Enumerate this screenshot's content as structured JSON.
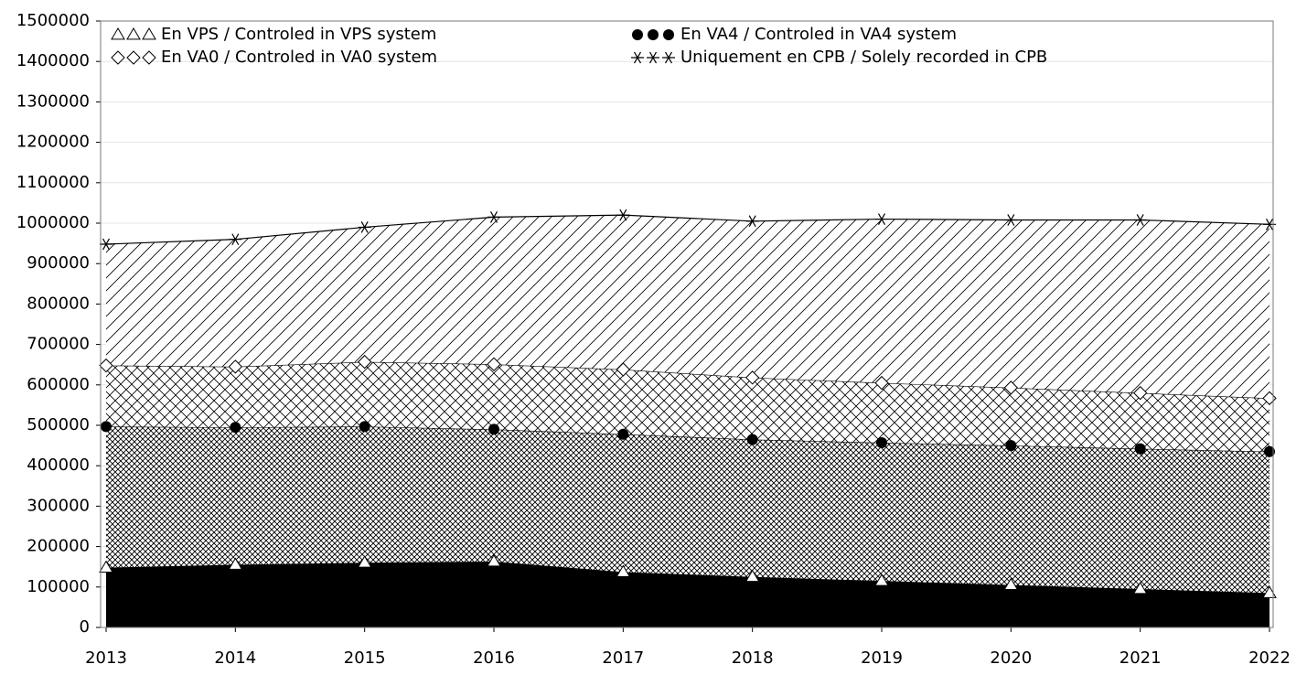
{
  "chart_data": {
    "type": "stacked_area",
    "x": [
      2013,
      2014,
      2015,
      2016,
      2017,
      2018,
      2019,
      2020,
      2021,
      2022
    ],
    "xlim": [
      2013,
      2022
    ],
    "xticks": [
      2013,
      2014,
      2015,
      2016,
      2017,
      2018,
      2019,
      2020,
      2021,
      2022
    ],
    "ylim": [
      0,
      1500000
    ],
    "yticks": [
      0,
      100000,
      200000,
      300000,
      400000,
      500000,
      600000,
      700000,
      800000,
      900000,
      1000000,
      1100000,
      1200000,
      1300000,
      1400000,
      1500000
    ],
    "grid": true,
    "legend": "top",
    "series": [
      {
        "name": "En VPS / Controled in VPS system",
        "color": "#000000",
        "marker": "triangle",
        "values": [
          148000,
          155000,
          160000,
          163000,
          137000,
          125000,
          115000,
          105000,
          95000,
          85000
        ]
      },
      {
        "name": "En VA4 / Controled in VA4 system",
        "color": "#000000",
        "marker": "circle",
        "values": [
          349000,
          340000,
          337000,
          327000,
          341000,
          340000,
          342000,
          345000,
          347000,
          350000
        ]
      },
      {
        "name": "En VA0 / Controled in VA0 system",
        "color": "#000000",
        "marker": "diamond",
        "values": [
          151000,
          150000,
          160000,
          161000,
          160000,
          153000,
          148000,
          143000,
          138000,
          132000
        ]
      },
      {
        "name": "Uniquement en CPB / Solely recorded in CPB",
        "color": "#000000",
        "marker": "star",
        "values": [
          300000,
          315000,
          333000,
          364000,
          382000,
          387000,
          405000,
          415000,
          428000,
          430000
        ]
      }
    ]
  }
}
